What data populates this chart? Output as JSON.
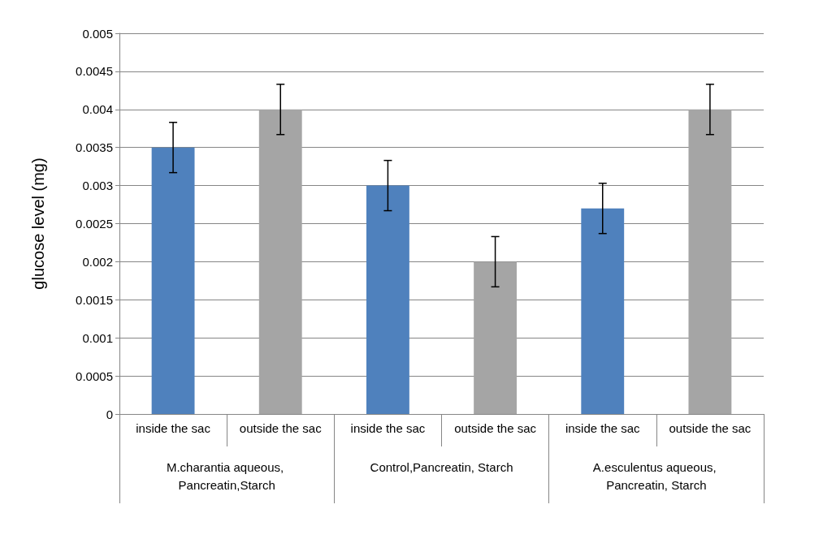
{
  "chart_data": {
    "type": "bar",
    "ylabel": "glucose level (mg)",
    "categories": [
      "inside the sac",
      "outside the sac",
      "inside the sac",
      "outside the sac",
      "inside the sac",
      "outside the sac"
    ],
    "values": [
      0.0035,
      0.004,
      0.003,
      0.002,
      0.0027,
      0.004
    ],
    "colors": [
      "#4f81bd",
      "#a5a5a5",
      "#4f81bd",
      "#a5a5a5",
      "#4f81bd",
      "#a5a5a5"
    ],
    "errors": [
      0.00033,
      0.00033,
      0.00033,
      0.00033,
      0.00033,
      0.00033
    ],
    "annotations": [
      "M.charantia aqueous, Pancreatin,Starch",
      "Control,Pancreatin, Starch",
      "A.esculentus aqueous, Pancreatin, Starch"
    ],
    "ylim": [
      0,
      0.005
    ],
    "yticks": [
      0,
      0.0005,
      0.001,
      0.0015,
      0.002,
      0.0025,
      0.003,
      0.0035,
      0.004,
      0.0045,
      0.005
    ],
    "grid": "y"
  }
}
